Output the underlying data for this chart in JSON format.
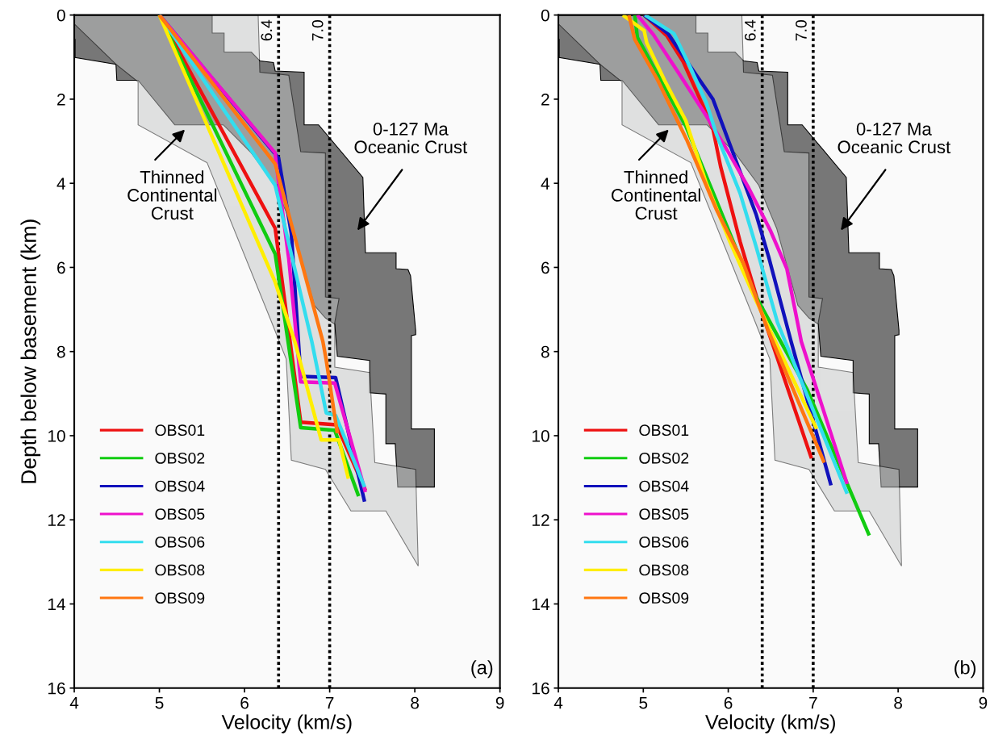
{
  "chart_data": [
    {
      "type": "line",
      "xlabel": "Velocity (km/s)",
      "ylabel": "Depth below basement (km)",
      "xlim": [
        4,
        9
      ],
      "ylim": [
        16,
        0
      ],
      "xticks": [
        4,
        5,
        6,
        7,
        8,
        9
      ],
      "yticks": [
        0,
        2,
        4,
        6,
        8,
        10,
        12,
        14,
        16
      ],
      "grid": false,
      "legend": "bottom left",
      "marker": "none",
      "line_style": "solid",
      "series": [
        {
          "type": "area",
          "color": "#777777",
          "x": [
            4.0,
            5.62,
            5.62,
            5.76,
            5.76,
            6.08,
            6.18,
            6.34,
            6.36,
            6.7,
            6.7,
            6.87,
            7.39,
            7.42,
            7.78,
            7.78,
            7.92,
            7.95,
            8.01,
            8.01,
            7.96,
            7.96,
            8.23,
            8.23,
            7.8,
            7.77,
            7.66,
            7.66,
            7.47,
            7.47,
            7.09,
            7.06,
            6.95,
            6.82,
            6.57,
            6.49,
            6.36,
            6.08,
            5.75,
            5.18,
            4.75,
            4.5,
            4.49,
            4.01,
            4.01,
            4.0
          ],
          "values": [
            0,
            0,
            0.43,
            0.43,
            0.88,
            0.88,
            1.09,
            1.13,
            1.33,
            1.36,
            2.61,
            2.61,
            3.86,
            5.65,
            5.65,
            6.03,
            6.05,
            6.2,
            7.5,
            7.6,
            7.62,
            9.84,
            9.84,
            11.22,
            11.22,
            10.19,
            10.19,
            9.01,
            8.98,
            8.21,
            8.11,
            7.35,
            7.2,
            6.9,
            5.07,
            4.69,
            4.05,
            3.28,
            2.61,
            2.61,
            1.55,
            1.55,
            1.17,
            1.01,
            0.58,
            0.58
          ]
        },
        {
          "type": "area",
          "color": "#c4c6c6",
          "x": [
            4.0,
            6.16,
            6.18,
            6.52,
            6.66,
            6.95,
            6.95,
            7.11,
            7.06,
            7.06,
            7.47,
            7.53,
            8.01,
            8.04,
            7.66,
            7.25,
            6.95,
            6.55,
            6.49,
            6.32,
            5.56,
            4.75,
            4.75,
            4.49,
            4.0
          ],
          "values": [
            0,
            0,
            1.36,
            1.43,
            3.25,
            3.28,
            6.7,
            6.74,
            7.31,
            8.37,
            8.5,
            10.64,
            10.8,
            13.1,
            11.79,
            11.79,
            10.8,
            10.58,
            8.18,
            7.31,
            3.51,
            2.61,
            1.59,
            1.17,
            0.21
          ]
        },
        {
          "name": "OBS01",
          "color": "#ee1111",
          "x": [
            5.0,
            6.36,
            6.66,
            7.08,
            7.42
          ],
          "values": [
            0,
            5.07,
            9.68,
            9.74,
            11.3
          ]
        },
        {
          "name": "OBS02",
          "color": "#11cc11",
          "x": [
            5.0,
            6.36,
            6.66,
            7.06,
            7.34
          ],
          "values": [
            0,
            5.68,
            9.81,
            9.87,
            11.44
          ]
        },
        {
          "name": "OBS04",
          "color": "#1111bb",
          "x": [
            5.0,
            6.4,
            6.55,
            6.66,
            7.07,
            7.41
          ],
          "values": [
            0,
            3.4,
            5.2,
            8.59,
            8.62,
            11.57
          ]
        },
        {
          "name": "OBS05",
          "color": "#ee11cc",
          "x": [
            5.0,
            6.36,
            6.37,
            6.52,
            6.66,
            7.06,
            7.42
          ],
          "values": [
            0,
            3.28,
            3.5,
            5.8,
            8.72,
            8.75,
            11.34
          ]
        },
        {
          "name": "OBS06",
          "color": "#33ddee",
          "x": [
            5.0,
            6.36,
            6.79,
            6.96,
            7.07,
            7.41
          ],
          "values": [
            0,
            4.05,
            7.76,
            9.46,
            9.52,
            11.22
          ]
        },
        {
          "name": "OBS08",
          "color": "#ffee00",
          "x": [
            5.0,
            6.36,
            6.59,
            6.9,
            7.11,
            7.22
          ],
          "values": [
            0,
            6.35,
            7.76,
            10.1,
            10.1,
            11.02
          ]
        },
        {
          "name": "OBS09",
          "color": "#ff7711",
          "x": [
            5.0,
            6.36,
            6.92,
            6.96,
            7.09
          ],
          "values": [
            0,
            3.54,
            7.76,
            8.21,
            9.94
          ]
        }
      ],
      "ref_lines": [
        {
          "axis": "x",
          "value": 6.4,
          "label": "6.4",
          "line_style": "dotted"
        },
        {
          "axis": "x",
          "value": 7.0,
          "label": "7.0",
          "line_style": "dotted"
        }
      ],
      "annotations": [
        "Thinned\nContinental\nCrust",
        "0-127 Ma\nOceanic Crust",
        "(a)"
      ]
    },
    {
      "type": "line",
      "xlabel": "Velocity (km/s)",
      "xlim": [
        4,
        9
      ],
      "ylim": [
        16,
        0
      ],
      "xticks": [
        4,
        5,
        6,
        7,
        8,
        9
      ],
      "yticks": [
        0,
        2,
        4,
        6,
        8,
        10,
        12,
        14,
        16
      ],
      "grid": false,
      "legend": "bottom left",
      "marker": "none",
      "line_style": "solid",
      "series": [
        {
          "type": "area",
          "color": "#777777",
          "x": [
            4.0,
            5.62,
            5.62,
            5.76,
            5.76,
            6.08,
            6.18,
            6.34,
            6.36,
            6.7,
            6.7,
            6.87,
            7.39,
            7.42,
            7.78,
            7.78,
            7.92,
            7.95,
            8.01,
            8.01,
            7.96,
            7.96,
            8.23,
            8.23,
            7.8,
            7.77,
            7.66,
            7.66,
            7.47,
            7.47,
            7.09,
            7.06,
            6.95,
            6.82,
            6.57,
            6.49,
            6.36,
            6.08,
            5.75,
            5.18,
            4.75,
            4.5,
            4.49,
            4.01,
            4.01,
            4.0
          ],
          "values": [
            0,
            0,
            0.43,
            0.43,
            0.88,
            0.88,
            1.09,
            1.13,
            1.33,
            1.36,
            2.61,
            2.61,
            3.86,
            5.65,
            5.65,
            6.03,
            6.05,
            6.2,
            7.5,
            7.6,
            7.62,
            9.84,
            9.84,
            11.22,
            11.22,
            10.19,
            10.19,
            9.01,
            8.98,
            8.21,
            8.11,
            7.35,
            7.2,
            6.9,
            5.07,
            4.69,
            4.05,
            3.28,
            2.61,
            2.61,
            1.55,
            1.55,
            1.17,
            1.01,
            0.58,
            0.58
          ]
        },
        {
          "type": "area",
          "color": "#c4c6c6",
          "x": [
            4.0,
            6.16,
            6.18,
            6.52,
            6.66,
            6.95,
            6.95,
            7.11,
            7.06,
            7.06,
            7.47,
            7.53,
            8.01,
            8.04,
            7.66,
            7.25,
            6.95,
            6.55,
            6.49,
            6.32,
            5.56,
            4.75,
            4.75,
            4.49,
            4.0
          ],
          "values": [
            0,
            0,
            1.36,
            1.43,
            3.25,
            3.28,
            6.7,
            6.74,
            7.31,
            8.37,
            8.5,
            10.64,
            10.8,
            13.1,
            11.79,
            11.79,
            10.8,
            10.58,
            8.18,
            7.31,
            3.51,
            2.61,
            1.59,
            1.17,
            0.21
          ]
        },
        {
          "name": "OBS01",
          "color": "#ee1111",
          "x": [
            5.01,
            5.28,
            5.47,
            5.71,
            5.82,
            5.91,
            6.14,
            6.34,
            6.98
          ],
          "values": [
            0,
            0.5,
            1.11,
            2.19,
            2.71,
            3.6,
            5.39,
            6.74,
            10.54
          ]
        },
        {
          "name": "OBS02",
          "color": "#11cc11",
          "x": [
            4.9,
            4.93,
            5.5,
            6.32,
            6.93,
            7.66
          ],
          "values": [
            0,
            0.53,
            2.64,
            6.67,
            8.91,
            12.37
          ]
        },
        {
          "name": "OBS04",
          "color": "#1111bb",
          "x": [
            5.01,
            5.29,
            5.6,
            5.82,
            6.07,
            6.33,
            6.48,
            6.74,
            7.21
          ],
          "values": [
            0,
            0.44,
            1.36,
            2.0,
            3.35,
            4.75,
            5.78,
            7.76,
            11.18
          ]
        },
        {
          "name": "OBS05",
          "color": "#ee11cc",
          "x": [
            4.93,
            5.12,
            5.41,
            5.74,
            5.99,
            6.24,
            6.5,
            6.69,
            6.86,
            7.4
          ],
          "values": [
            0,
            0.47,
            1.36,
            2.39,
            3.22,
            4.11,
            5.14,
            6.03,
            7.76,
            11.15
          ]
        },
        {
          "name": "OBS06",
          "color": "#33ddee",
          "x": [
            5.02,
            5.36,
            5.55,
            5.74,
            5.86,
            6.14,
            6.33,
            6.58,
            7.4
          ],
          "values": [
            0,
            0.44,
            1.23,
            2.07,
            2.83,
            4.24,
            5.52,
            7.31,
            11.38
          ]
        },
        {
          "name": "OBS08",
          "color": "#ffee00",
          "x": [
            4.76,
            5.01,
            5.04,
            5.25,
            5.5,
            5.74,
            6.02,
            6.33,
            7.04
          ],
          "values": [
            0,
            0.37,
            0.66,
            1.55,
            2.51,
            3.99,
            5.39,
            6.8,
            9.84
          ]
        },
        {
          "name": "OBS09",
          "color": "#ff7711",
          "x": [
            4.83,
            4.9,
            5.17,
            5.51,
            5.86,
            6.18,
            6.47,
            7.13
          ],
          "values": [
            0,
            0.58,
            1.55,
            2.96,
            4.62,
            5.91,
            7.5,
            10.64
          ]
        }
      ],
      "ref_lines": [
        {
          "axis": "x",
          "value": 6.4,
          "label": "6.4",
          "line_style": "dotted"
        },
        {
          "axis": "x",
          "value": 7.0,
          "label": "7.0",
          "line_style": "dotted"
        }
      ],
      "annotations": [
        "Thinned\nContinental\nCrust",
        "0-127 Ma\nOceanic Crust",
        "(b)"
      ]
    }
  ]
}
